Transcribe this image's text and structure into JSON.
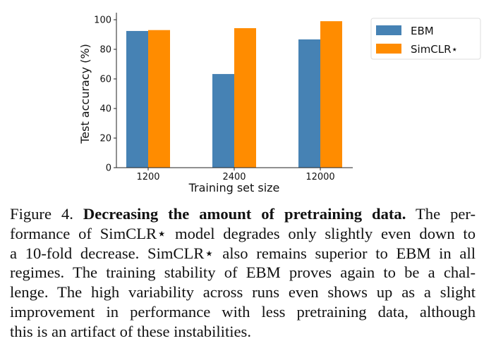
{
  "chart_data": {
    "type": "bar",
    "title": "",
    "xlabel": "Training set size",
    "ylabel": "Test accuracy (%)",
    "categories": [
      "1200",
      "2400",
      "12000"
    ],
    "series": [
      {
        "name": "EBM",
        "color": "#4682b4",
        "values": [
          92.4,
          63.3,
          86.7
        ]
      },
      {
        "name": "SimCLR⋆",
        "color": "#ff8c00",
        "values": [
          93.0,
          94.3,
          99.0
        ]
      }
    ],
    "ylim": [
      0,
      100
    ],
    "yticks": [
      "0",
      "20",
      "40",
      "60",
      "80",
      "100"
    ],
    "ytick_values": [
      0,
      20,
      40,
      60,
      80,
      100
    ],
    "grid": false,
    "legend_position": "top-right (outside)"
  },
  "caption": {
    "label": "Figure 4.",
    "bold_title": "Decreasing the amount of pretraining data.",
    "lines": [
      "The per-",
      "formance of SimCLR⋆ model degrades only slightly even down to",
      "a 10-fold decrease. SimCLR⋆ also remains superior to EBM in all",
      "regimes. The training stability of EBM proves again to be a chal-",
      "lenge. The high variability across runs even shows up as a slight",
      "improvement in performance with less pretraining data, although",
      "this is an artifact of these instabilities."
    ]
  }
}
